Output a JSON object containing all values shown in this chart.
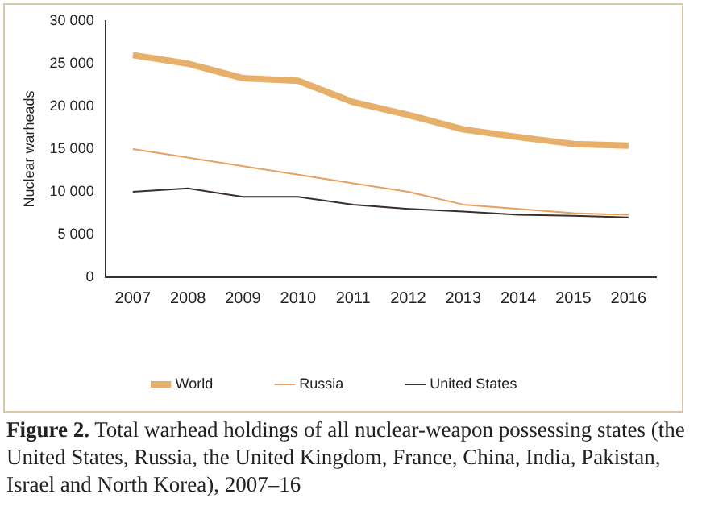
{
  "chart_data": {
    "type": "line",
    "ylabel": "Nuclear warheads",
    "categories": [
      "2007",
      "2008",
      "2009",
      "2010",
      "2011",
      "2012",
      "2013",
      "2014",
      "2015",
      "2016"
    ],
    "series": [
      {
        "name": "World",
        "color": "#e6b06a",
        "values": [
          26000,
          25000,
          23300,
          23000,
          20500,
          19000,
          17300,
          16400,
          15600,
          15400
        ]
      },
      {
        "name": "Russia",
        "color": "#e8a060",
        "values": [
          15000,
          14000,
          13000,
          12000,
          11000,
          10000,
          8500,
          8000,
          7500,
          7300
        ]
      },
      {
        "name": "United States",
        "color": "#3a2e28",
        "values": [
          10000,
          10400,
          9400,
          9400,
          8500,
          8000,
          7700,
          7300,
          7200,
          7000
        ]
      }
    ],
    "ylim": [
      0,
      30000
    ],
    "yticks": [
      {
        "value": 0,
        "label": "0"
      },
      {
        "value": 5000,
        "label": "5 000"
      },
      {
        "value": 10000,
        "label": "10 000"
      },
      {
        "value": 15000,
        "label": "15 000"
      },
      {
        "value": 20000,
        "label": "20 000"
      },
      {
        "value": 25000,
        "label": "25 000"
      },
      {
        "value": 30000,
        "label": "30 000"
      }
    ],
    "grid": false,
    "legend": "bottom",
    "marker": "none",
    "line_style": "solid",
    "annotations": [
      "Figure 2. Total warhead holdings of all nuclear-weapon possessing states (the United States, Russia, the United Kingdom, France, China, India, Pakistan, Israel and North Korea), 2007–16"
    ]
  }
}
